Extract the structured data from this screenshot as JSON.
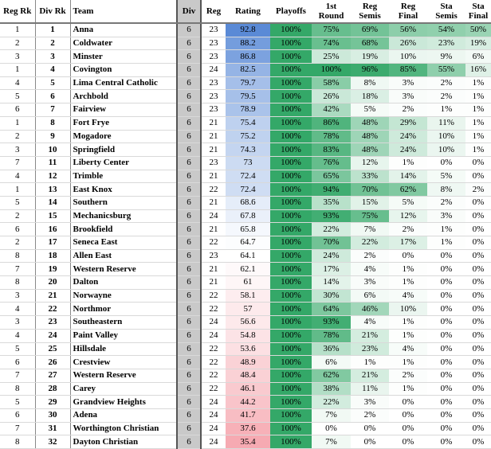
{
  "table": {
    "columns": [
      "Reg Rk",
      "Div Rk",
      "Team",
      "Div",
      "Reg",
      "Rating",
      "Playoffs",
      "1st Round",
      "Reg Semis",
      "Reg Final",
      "Sta Semis",
      "Sta Final"
    ],
    "rows": [
      [
        "1",
        "1",
        "Anna",
        "6",
        "23",
        92.8,
        "100%",
        "75%",
        "69%",
        "56%",
        "54%",
        "50%"
      ],
      [
        "2",
        "2",
        "Coldwater",
        "6",
        "23",
        88.2,
        "100%",
        "74%",
        "68%",
        "26%",
        "23%",
        "19%"
      ],
      [
        "3",
        "3",
        "Minster",
        "6",
        "23",
        86.8,
        "100%",
        "25%",
        "19%",
        "10%",
        "9%",
        "6%"
      ],
      [
        "1",
        "4",
        "Covington",
        "6",
        "24",
        82.5,
        "100%",
        "100%",
        "96%",
        "85%",
        "55%",
        "16%"
      ],
      [
        "4",
        "5",
        "Lima Central Catholic",
        "6",
        "23",
        79.7,
        "100%",
        "58%",
        "8%",
        "3%",
        "2%",
        "1%"
      ],
      [
        "5",
        "6",
        "Archbold",
        "6",
        "23",
        79.5,
        "100%",
        "26%",
        "18%",
        "3%",
        "2%",
        "1%"
      ],
      [
        "6",
        "7",
        "Fairview",
        "6",
        "23",
        78.9,
        "100%",
        "42%",
        "5%",
        "2%",
        "1%",
        "1%"
      ],
      [
        "1",
        "8",
        "Fort Frye",
        "6",
        "21",
        75.4,
        "100%",
        "86%",
        "48%",
        "29%",
        "11%",
        "1%"
      ],
      [
        "2",
        "9",
        "Mogadore",
        "6",
        "21",
        75.2,
        "100%",
        "78%",
        "48%",
        "24%",
        "10%",
        "1%"
      ],
      [
        "3",
        "10",
        "Springfield",
        "6",
        "21",
        74.3,
        "100%",
        "83%",
        "48%",
        "24%",
        "10%",
        "1%"
      ],
      [
        "7",
        "11",
        "Liberty Center",
        "6",
        "23",
        73,
        "100%",
        "76%",
        "12%",
        "1%",
        "0%",
        "0%"
      ],
      [
        "4",
        "12",
        "Trimble",
        "6",
        "21",
        72.4,
        "100%",
        "65%",
        "33%",
        "14%",
        "5%",
        "0%"
      ],
      [
        "1",
        "13",
        "East Knox",
        "6",
        "22",
        72.4,
        "100%",
        "94%",
        "70%",
        "62%",
        "8%",
        "2%"
      ],
      [
        "5",
        "14",
        "Southern",
        "6",
        "21",
        68.6,
        "100%",
        "35%",
        "15%",
        "5%",
        "2%",
        "0%"
      ],
      [
        "2",
        "15",
        "Mechanicsburg",
        "6",
        "24",
        67.8,
        "100%",
        "93%",
        "75%",
        "12%",
        "3%",
        "0%"
      ],
      [
        "6",
        "16",
        "Brookfield",
        "6",
        "21",
        65.8,
        "100%",
        "22%",
        "7%",
        "2%",
        "1%",
        "0%"
      ],
      [
        "2",
        "17",
        "Seneca East",
        "6",
        "22",
        64.7,
        "100%",
        "70%",
        "22%",
        "17%",
        "1%",
        "0%"
      ],
      [
        "8",
        "18",
        "Allen East",
        "6",
        "23",
        64.1,
        "100%",
        "24%",
        "2%",
        "0%",
        "0%",
        "0%"
      ],
      [
        "7",
        "19",
        "Western Reserve",
        "6",
        "21",
        62.1,
        "100%",
        "17%",
        "4%",
        "1%",
        "0%",
        "0%"
      ],
      [
        "8",
        "20",
        "Dalton",
        "6",
        "21",
        61,
        "100%",
        "14%",
        "3%",
        "1%",
        "0%",
        "0%"
      ],
      [
        "3",
        "21",
        "Norwayne",
        "6",
        "22",
        58.1,
        "100%",
        "30%",
        "6%",
        "4%",
        "0%",
        "0%"
      ],
      [
        "4",
        "22",
        "Northmor",
        "6",
        "22",
        57,
        "100%",
        "64%",
        "46%",
        "10%",
        "0%",
        "0%"
      ],
      [
        "3",
        "23",
        "Southeastern",
        "6",
        "24",
        56.6,
        "100%",
        "93%",
        "4%",
        "1%",
        "0%",
        "0%"
      ],
      [
        "4",
        "24",
        "Paint Valley",
        "6",
        "24",
        54.8,
        "100%",
        "78%",
        "21%",
        "1%",
        "0%",
        "0%"
      ],
      [
        "5",
        "25",
        "Hillsdale",
        "6",
        "22",
        53.6,
        "100%",
        "36%",
        "23%",
        "4%",
        "0%",
        "0%"
      ],
      [
        "6",
        "26",
        "Crestview",
        "6",
        "22",
        48.9,
        "100%",
        "6%",
        "1%",
        "1%",
        "0%",
        "0%"
      ],
      [
        "7",
        "27",
        "Western Reserve",
        "6",
        "22",
        48.4,
        "100%",
        "62%",
        "21%",
        "2%",
        "0%",
        "0%"
      ],
      [
        "8",
        "28",
        "Carey",
        "6",
        "22",
        46.1,
        "100%",
        "38%",
        "11%",
        "1%",
        "0%",
        "0%"
      ],
      [
        "5",
        "29",
        "Grandview Heights",
        "6",
        "24",
        44.2,
        "100%",
        "22%",
        "3%",
        "0%",
        "0%",
        "0%"
      ],
      [
        "6",
        "30",
        "Adena",
        "6",
        "24",
        41.7,
        "100%",
        "7%",
        "2%",
        "0%",
        "0%",
        "0%"
      ],
      [
        "7",
        "31",
        "Worthington Christian",
        "6",
        "24",
        37.6,
        "100%",
        "0%",
        "0%",
        "0%",
        "0%",
        "0%"
      ],
      [
        "8",
        "32",
        "Dayton Christian",
        "6",
        "24",
        35.4,
        "100%",
        "7%",
        "0%",
        "0%",
        "0%",
        "0%"
      ]
    ]
  }
}
